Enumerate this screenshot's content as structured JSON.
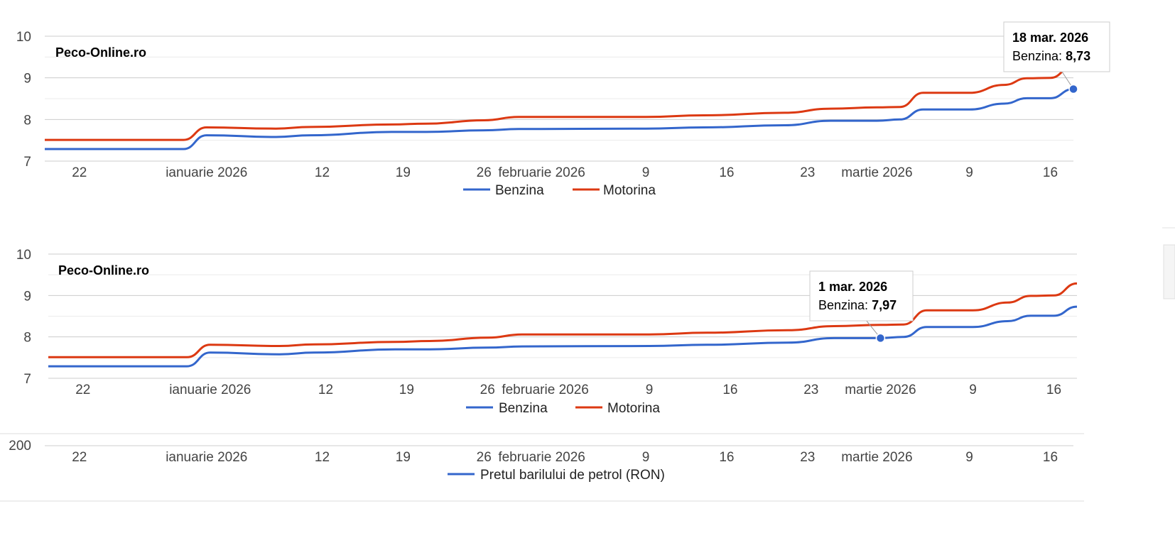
{
  "colors": {
    "benzina": "#3366cc",
    "motorina": "#dc3912",
    "grid_major": "#cccccc",
    "grid_minor": "#ebebeb",
    "axis_text": "#444444"
  },
  "chart_data": [
    {
      "type": "line",
      "title": "Peco-Online.ro",
      "x_tick_labels": [
        "22",
        "ianuarie 2026",
        "12",
        "19",
        "26",
        "februarie 2026",
        "9",
        "16",
        "23",
        "martie 2026",
        "9",
        "16"
      ],
      "x_range": [
        "2025-12-19",
        "2026-03-18"
      ],
      "y_tick_labels": [
        "7",
        "8",
        "9",
        "10"
      ],
      "ylim": [
        7,
        10
      ],
      "legend": [
        "Benzina",
        "Motorina"
      ],
      "series": [
        {
          "name": "Benzina",
          "x": [
            "2025-12-19",
            "2025-12-31",
            "2026-01-02",
            "2026-01-08",
            "2026-01-11",
            "2026-01-18",
            "2026-01-21",
            "2026-01-26",
            "2026-01-29",
            "2026-02-09",
            "2026-02-14",
            "2026-02-21",
            "2026-02-25",
            "2026-03-01",
            "2026-03-03",
            "2026-03-05",
            "2026-03-09",
            "2026-03-12",
            "2026-03-14",
            "2026-03-16",
            "2026-03-18"
          ],
          "values": [
            7.29,
            7.29,
            7.62,
            7.58,
            7.62,
            7.7,
            7.7,
            7.74,
            7.77,
            7.78,
            7.81,
            7.86,
            7.97,
            7.97,
            8.0,
            8.24,
            8.24,
            8.38,
            8.51,
            8.51,
            8.73
          ]
        },
        {
          "name": "Motorina",
          "x": [
            "2025-12-19",
            "2025-12-31",
            "2026-01-02",
            "2026-01-08",
            "2026-01-11",
            "2026-01-18",
            "2026-01-21",
            "2026-01-26",
            "2026-01-29",
            "2026-02-09",
            "2026-02-14",
            "2026-02-21",
            "2026-02-25",
            "2026-03-01",
            "2026-03-03",
            "2026-03-05",
            "2026-03-09",
            "2026-03-12",
            "2026-03-14",
            "2026-03-16",
            "2026-03-18"
          ],
          "values": [
            7.51,
            7.51,
            7.81,
            7.78,
            7.82,
            7.88,
            7.9,
            7.98,
            8.06,
            8.06,
            8.1,
            8.16,
            8.26,
            8.29,
            8.3,
            8.64,
            8.64,
            8.83,
            8.99,
            9.0,
            9.29
          ]
        }
      ],
      "tooltip": {
        "date": "18 mar. 2026",
        "series_label": "Benzina:",
        "value_text": "8,73",
        "x": "2026-03-18",
        "y": 8.73
      }
    },
    {
      "type": "line",
      "title": "Peco-Online.ro",
      "x_tick_labels": [
        "22",
        "ianuarie 2026",
        "12",
        "19",
        "26",
        "februarie 2026",
        "9",
        "16",
        "23",
        "martie 2026",
        "9",
        "16"
      ],
      "x_range": [
        "2025-12-19",
        "2026-03-18"
      ],
      "y_tick_labels": [
        "7",
        "8",
        "9",
        "10"
      ],
      "ylim": [
        7,
        10
      ],
      "legend": [
        "Benzina",
        "Motorina"
      ],
      "series": [
        {
          "name": "Benzina",
          "x": [
            "2025-12-19",
            "2025-12-31",
            "2026-01-02",
            "2026-01-08",
            "2026-01-11",
            "2026-01-18",
            "2026-01-21",
            "2026-01-26",
            "2026-01-29",
            "2026-02-09",
            "2026-02-14",
            "2026-02-21",
            "2026-02-25",
            "2026-03-01",
            "2026-03-03",
            "2026-03-05",
            "2026-03-09",
            "2026-03-12",
            "2026-03-14",
            "2026-03-16",
            "2026-03-18"
          ],
          "values": [
            7.29,
            7.29,
            7.62,
            7.58,
            7.62,
            7.7,
            7.7,
            7.74,
            7.77,
            7.78,
            7.81,
            7.86,
            7.97,
            7.97,
            8.0,
            8.24,
            8.24,
            8.38,
            8.51,
            8.51,
            8.73
          ]
        },
        {
          "name": "Motorina",
          "x": [
            "2025-12-19",
            "2025-12-31",
            "2026-01-02",
            "2026-01-08",
            "2026-01-11",
            "2026-01-18",
            "2026-01-21",
            "2026-01-26",
            "2026-01-29",
            "2026-02-09",
            "2026-02-14",
            "2026-02-21",
            "2026-02-25",
            "2026-03-01",
            "2026-03-03",
            "2026-03-05",
            "2026-03-09",
            "2026-03-12",
            "2026-03-14",
            "2026-03-16",
            "2026-03-18"
          ],
          "values": [
            7.51,
            7.51,
            7.81,
            7.78,
            7.82,
            7.88,
            7.9,
            7.98,
            8.06,
            8.06,
            8.1,
            8.16,
            8.26,
            8.29,
            8.3,
            8.64,
            8.64,
            8.83,
            8.99,
            9.0,
            9.29
          ]
        }
      ],
      "tooltip": {
        "date": "1 mar. 2026",
        "series_label": "Benzina:",
        "value_text": "7,97",
        "x": "2026-03-01",
        "y": 7.97
      }
    },
    {
      "type": "line",
      "title": "",
      "x_tick_labels": [
        "22",
        "ianuarie 2026",
        "12",
        "19",
        "26",
        "februarie 2026",
        "9",
        "16",
        "23",
        "martie 2026",
        "9",
        "16"
      ],
      "x_range": [
        "2025-12-19",
        "2026-03-18"
      ],
      "y_tick_labels": [
        "200"
      ],
      "legend": [
        "Pretul barilului de petrol (RON)"
      ],
      "series": [
        {
          "name": "Pretul barilului de petrol (RON)",
          "x": [],
          "values": []
        }
      ]
    }
  ]
}
